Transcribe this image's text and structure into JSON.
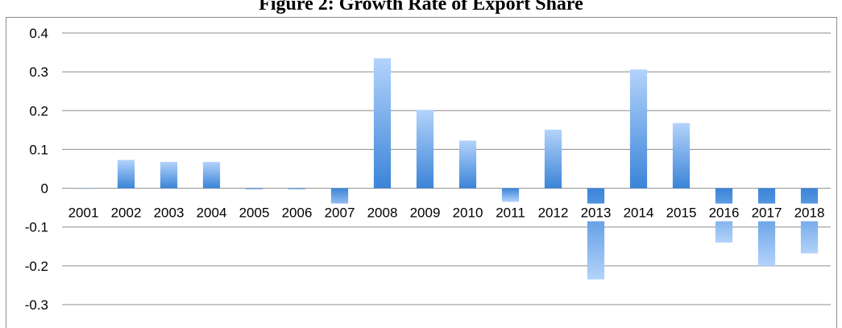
{
  "chart_data": {
    "type": "bar",
    "title": "Figure 2: Growth Rate of Export Share",
    "xlabel": "",
    "ylabel": "",
    "categories": [
      "2001",
      "2002",
      "2003",
      "2004",
      "2005",
      "2006",
      "2007",
      "2008",
      "2009",
      "2010",
      "2011",
      "2012",
      "2013",
      "2014",
      "2015",
      "2016",
      "2017",
      "2018"
    ],
    "values": [
      0,
      0.073,
      0.068,
      0.068,
      -0.003,
      -0.003,
      -0.055,
      0.335,
      0.202,
      0.123,
      -0.035,
      0.151,
      -0.235,
      0.306,
      0.168,
      -0.14,
      -0.2,
      -0.168
    ],
    "ylim": [
      -0.3,
      0.4
    ],
    "yticks": [
      "0.4",
      "0.3",
      "0.2",
      "0.1",
      "0",
      "-0.1",
      "-0.2",
      "-0.3"
    ],
    "grid": true,
    "legend": "none",
    "colors": {
      "bar_top": "#a9cdf9",
      "bar_bottom": "#3d85d8",
      "grid": "#8c8c8c"
    }
  }
}
